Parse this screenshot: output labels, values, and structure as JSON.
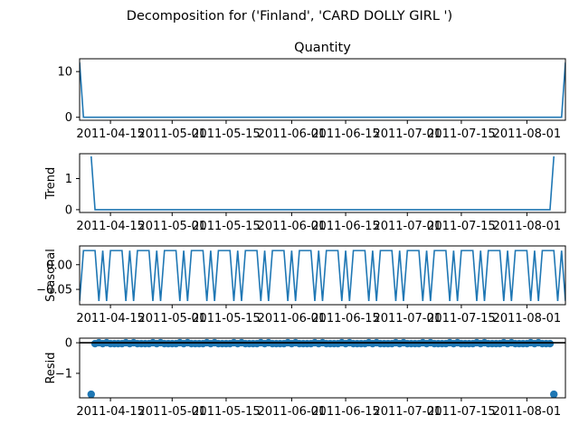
{
  "suptitle": "Decomposition for ('Finland', 'CARD DOLLY GIRL ')",
  "colors": {
    "line": "#1f77b4",
    "axis": "#000000",
    "background": "#ffffff"
  },
  "chart_data": [
    {
      "type": "line",
      "title": "Quantity",
      "ylabel": "",
      "x_range": [
        "2011-04-07",
        "2011-08-11"
      ],
      "x_ticks": [
        "2011-04-15",
        "2011-05-01",
        "2011-05-15",
        "2011-06-01",
        "2011-06-15",
        "2011-07-01",
        "2011-07-15",
        "2011-08-01"
      ],
      "ylim": [
        -0.65,
        12.8
      ],
      "y_ticks": [
        0,
        10
      ],
      "y_tick_labels": [
        "0",
        "10"
      ],
      "x": [
        "2011-04-07",
        "2011-04-08",
        "2011-08-10",
        "2011-08-11"
      ],
      "values": [
        12,
        0,
        0,
        12
      ]
    },
    {
      "type": "line",
      "title": "",
      "ylabel": "Trend",
      "x_range": [
        "2011-04-07",
        "2011-08-11"
      ],
      "x_ticks": [
        "2011-04-15",
        "2011-05-01",
        "2011-05-15",
        "2011-06-01",
        "2011-06-15",
        "2011-07-01",
        "2011-07-15",
        "2011-08-01"
      ],
      "ylim": [
        -0.09,
        1.8
      ],
      "y_ticks": [
        0,
        1
      ],
      "y_tick_labels": [
        "0",
        "1"
      ],
      "x": [
        "2011-04-10",
        "2011-04-11",
        "2011-08-07",
        "2011-08-08"
      ],
      "values": [
        1.714,
        0,
        0,
        1.714
      ]
    },
    {
      "type": "line",
      "title": "",
      "ylabel": "Seasonal",
      "x_range": [
        "2011-04-07",
        "2011-08-11"
      ],
      "x_ticks": [
        "2011-04-15",
        "2011-05-01",
        "2011-05-15",
        "2011-06-01",
        "2011-06-15",
        "2011-07-01",
        "2011-07-15",
        "2011-08-01"
      ],
      "ylim": [
        -0.081,
        0.038
      ],
      "y_ticks": [
        0.0,
        -0.05
      ],
      "y_tick_labels": [
        "0.00",
        "−0.05"
      ],
      "period": 7,
      "seasonal_pattern": [
        -0.0735,
        0.0286,
        0.0286,
        0.0286,
        0.0286,
        -0.0735,
        0.0286
      ]
    },
    {
      "type": "scatter",
      "title": "",
      "ylabel": "Resid",
      "x_range": [
        "2011-04-07",
        "2011-08-11"
      ],
      "x_ticks": [
        "2011-04-15",
        "2011-05-01",
        "2011-05-15",
        "2011-06-01",
        "2011-06-15",
        "2011-07-01",
        "2011-07-15",
        "2011-08-01"
      ],
      "ylim": [
        -1.8,
        0.15
      ],
      "y_ticks": [
        0,
        -1
      ],
      "y_tick_labels": [
        "0",
        "−1"
      ],
      "baseline": 0,
      "resid_pattern": [
        0,
        -0.0286,
        -0.0286,
        -0.0286,
        -0.0286,
        0,
        -0.0286
      ],
      "outliers": [
        {
          "x": "2011-04-10",
          "value": -1.685
        },
        {
          "x": "2011-08-08",
          "value": -1.685
        }
      ]
    }
  ]
}
